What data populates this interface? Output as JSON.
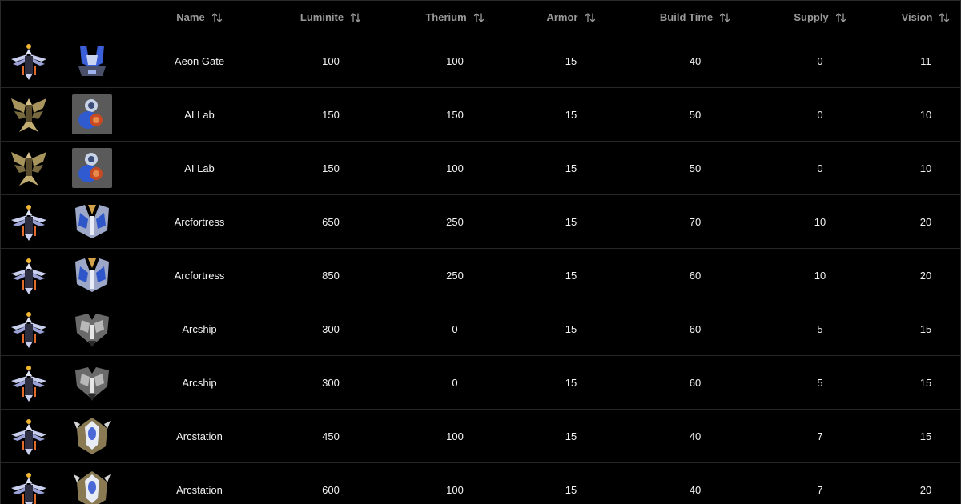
{
  "table": {
    "columns": [
      {
        "key": "name",
        "label": "Name"
      },
      {
        "key": "luminite",
        "label": "Luminite"
      },
      {
        "key": "therium",
        "label": "Therium"
      },
      {
        "key": "armor",
        "label": "Armor"
      },
      {
        "key": "build_time",
        "label": "Build Time"
      },
      {
        "key": "supply",
        "label": "Supply"
      },
      {
        "key": "vision",
        "label": "Vision"
      }
    ],
    "sort_icon": "sort-arrows-icon",
    "rows": [
      {
        "faction_icon": "aru-faction-icon",
        "unit_icon": "aeon-gate-icon",
        "name": "Aeon Gate",
        "luminite": "100",
        "therium": "100",
        "armor": "15",
        "build_time": "40",
        "supply": "0",
        "vision": "11"
      },
      {
        "faction_icon": "qrath-eagle-faction-icon",
        "unit_icon": "ai-lab-icon",
        "name": "AI Lab",
        "luminite": "150",
        "therium": "150",
        "armor": "15",
        "build_time": "50",
        "supply": "0",
        "vision": "10"
      },
      {
        "faction_icon": "qrath-eagle-faction-icon",
        "unit_icon": "ai-lab-icon",
        "name": "AI Lab",
        "luminite": "150",
        "therium": "100",
        "armor": "15",
        "build_time": "50",
        "supply": "0",
        "vision": "10"
      },
      {
        "faction_icon": "aru-faction-icon",
        "unit_icon": "arcfortress-icon",
        "name": "Arcfortress",
        "luminite": "650",
        "therium": "250",
        "armor": "15",
        "build_time": "70",
        "supply": "10",
        "vision": "20"
      },
      {
        "faction_icon": "aru-faction-icon",
        "unit_icon": "arcfortress-icon",
        "name": "Arcfortress",
        "luminite": "850",
        "therium": "250",
        "armor": "15",
        "build_time": "60",
        "supply": "10",
        "vision": "20"
      },
      {
        "faction_icon": "aru-faction-icon",
        "unit_icon": "arcship-icon",
        "name": "Arcship",
        "luminite": "300",
        "therium": "0",
        "armor": "15",
        "build_time": "60",
        "supply": "5",
        "vision": "15"
      },
      {
        "faction_icon": "aru-faction-icon",
        "unit_icon": "arcship-icon",
        "name": "Arcship",
        "luminite": "300",
        "therium": "0",
        "armor": "15",
        "build_time": "60",
        "supply": "5",
        "vision": "15"
      },
      {
        "faction_icon": "aru-faction-icon",
        "unit_icon": "arcstation-icon",
        "name": "Arcstation",
        "luminite": "450",
        "therium": "100",
        "armor": "15",
        "build_time": "40",
        "supply": "7",
        "vision": "15"
      },
      {
        "faction_icon": "aru-faction-icon",
        "unit_icon": "arcstation-icon",
        "name": "Arcstation",
        "luminite": "600",
        "therium": "100",
        "armor": "15",
        "build_time": "40",
        "supply": "7",
        "vision": "20"
      }
    ]
  },
  "colors": {
    "background": "#000000",
    "header_text": "#9a9a9a",
    "cell_text": "#f2f2f2",
    "row_border": "#262626"
  }
}
